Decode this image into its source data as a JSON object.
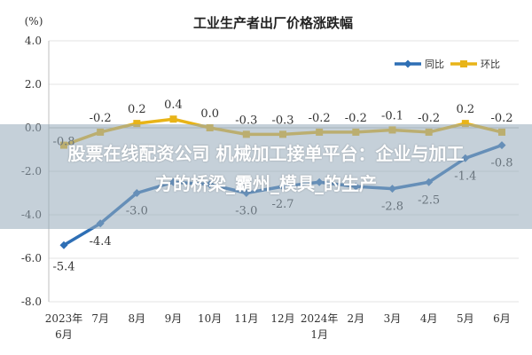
{
  "overlay": {
    "line1": "股票在线配资公司 机械加工接单平台：企业与加工",
    "line2": "方的桥梁_霸州_模具_的生产"
  },
  "chart_data": {
    "type": "line",
    "title": "工业生产者出厂价格涨跌幅",
    "unit": "(%)",
    "categories": [
      [
        "2023年",
        "6月"
      ],
      [
        "7月"
      ],
      [
        "8月"
      ],
      [
        "9月"
      ],
      [
        "10月"
      ],
      [
        "11月"
      ],
      [
        "12月"
      ],
      [
        "2024年",
        "1月"
      ],
      [
        "2月"
      ],
      [
        "3月"
      ],
      [
        "4月"
      ],
      [
        "5月"
      ],
      [
        "6月"
      ]
    ],
    "ylim": [
      -8.0,
      4.0
    ],
    "yticks": [
      "4.0",
      "2.0",
      "0.0",
      "-2.0",
      "-4.0",
      "-6.0",
      "-8.0"
    ],
    "grid": true,
    "legend_position": "top-right",
    "series": [
      {
        "name": "同比",
        "color": "#2e6fb5",
        "values": [
          -5.4,
          -4.4,
          -3.0,
          -2.5,
          -2.6,
          -3.0,
          -2.7,
          -2.5,
          -2.7,
          -2.8,
          -2.5,
          -1.4,
          -0.8
        ],
        "labels": [
          "-5.4",
          "-4.4",
          "-3.0",
          "",
          "",
          "-3.0",
          "-2.7",
          "",
          "",
          "-2.8",
          "-2.5",
          "-1.4",
          "-0.8"
        ]
      },
      {
        "name": "环比",
        "color": "#e8b418",
        "values": [
          -0.8,
          -0.2,
          0.2,
          0.4,
          0.0,
          -0.3,
          -0.3,
          -0.2,
          -0.2,
          -0.1,
          -0.2,
          0.2,
          -0.2
        ],
        "labels": [
          "-0.8",
          "-0.2",
          "0.2",
          "0.4",
          "0.0",
          "-0.3",
          "-0.3",
          "-0.2",
          "-0.2",
          "-0.1",
          "-0.2",
          "0.2",
          "-0.2"
        ]
      }
    ]
  }
}
